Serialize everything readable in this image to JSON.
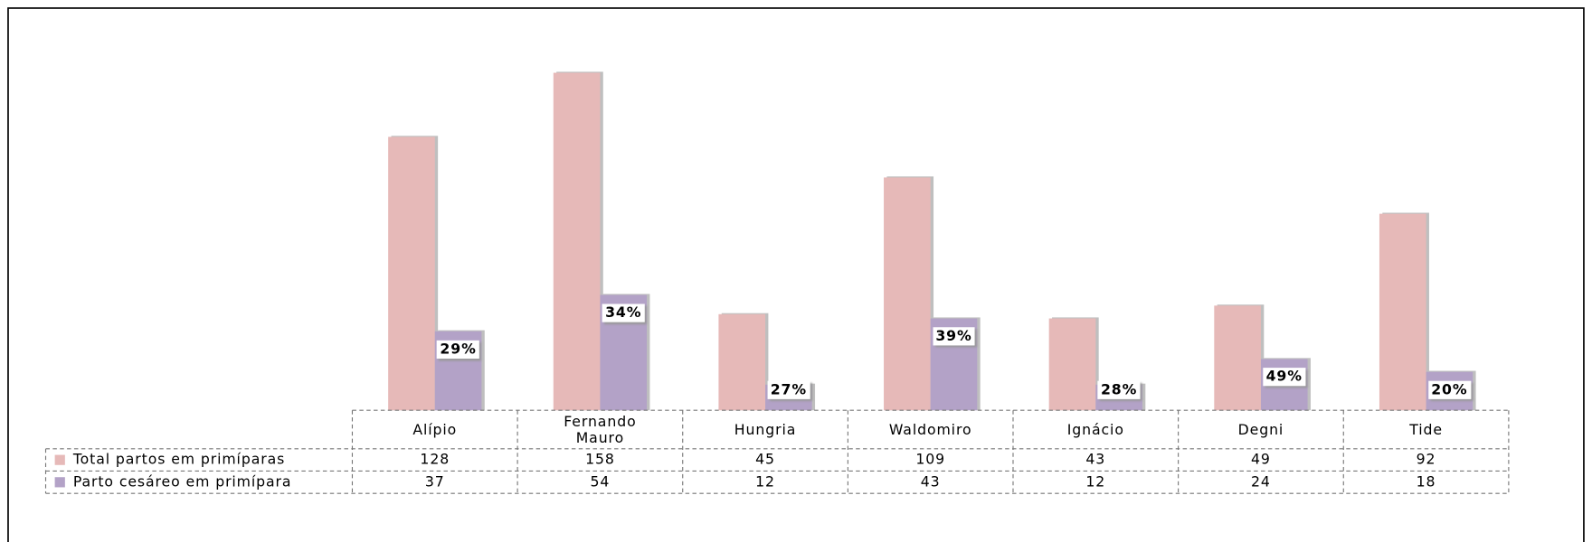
{
  "chart_data": {
    "type": "bar",
    "categories": [
      "Alípio",
      "Fernando Mauro",
      "Hungria",
      "Waldomiro",
      "Ignácio",
      "Degni",
      "Tide"
    ],
    "series": [
      {
        "name": "Total partos em primíparas",
        "color": "#e6b9b8",
        "values": [
          128,
          158,
          45,
          109,
          43,
          49,
          92
        ]
      },
      {
        "name": "Parto cesáreo em primípara",
        "color": "#b3a2c7",
        "values": [
          37,
          54,
          12,
          43,
          12,
          24,
          18
        ]
      }
    ],
    "annotations": [
      "29%",
      "34%",
      "27%",
      "39%",
      "28%",
      "49%",
      "20%"
    ],
    "ylim": [
      0,
      175
    ],
    "data_table": true
  }
}
